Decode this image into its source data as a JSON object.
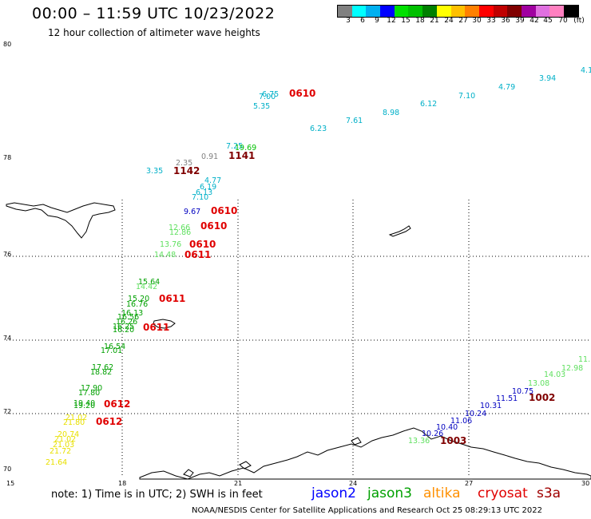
{
  "header": {
    "title": "00:00 – 11:59 UTC 10/23/2022",
    "subtitle": "12 hour collection of altimeter wave heights"
  },
  "colorbar": {
    "colors": [
      "#808080",
      "#00ffff",
      "#00b0f0",
      "#0000ff",
      "#00e000",
      "#00c000",
      "#008000",
      "#ffff00",
      "#ffc000",
      "#ff8000",
      "#ff0000",
      "#c00000",
      "#800000",
      "#a000a0",
      "#e070e0",
      "#ff80c0",
      "#000000"
    ],
    "labels": [
      "3",
      "6",
      "9",
      "12",
      "15",
      "18",
      "21",
      "24",
      "27",
      "30",
      "33",
      "36",
      "39",
      "42",
      "45",
      "70",
      "(ft)"
    ]
  },
  "axes": {
    "lat_labels": [
      "80",
      "78",
      "76",
      "74",
      "72",
      "70"
    ],
    "lon_labels": [
      "15",
      "18",
      "21",
      "24",
      "27",
      "30"
    ]
  },
  "observations": [
    {
      "text": "4.1",
      "color": "#00b0c8"
    },
    {
      "text": "3.94",
      "color": "#00b0c8"
    },
    {
      "text": "4.79",
      "color": "#00b0c8"
    },
    {
      "text": "7.10",
      "color": "#00b0c8"
    },
    {
      "text": "6.12",
      "color": "#00b0c8"
    },
    {
      "text": "8.98",
      "color": "#00b0c8"
    },
    {
      "text": "7.61",
      "color": "#00b0c8"
    },
    {
      "text": "6.23",
      "color": "#00b0c8"
    },
    {
      "text": "6.75",
      "color": "#00b0c8"
    },
    {
      "text": "7.00",
      "color": "#00b0c8"
    },
    {
      "text": "5.35",
      "color": "#00b0c8"
    },
    {
      "text": "0610",
      "color": "#e00000"
    },
    {
      "text": "7.25",
      "color": "#00b0c8"
    },
    {
      "text": "19.69",
      "color": "#00c000"
    },
    {
      "text": "0.91",
      "color": "#808080"
    },
    {
      "text": "1141",
      "color": "#800000"
    },
    {
      "text": "2.35",
      "color": "#808080"
    },
    {
      "text": "3.35",
      "color": "#00b0c8"
    },
    {
      "text": "1142",
      "color": "#800000"
    },
    {
      "text": "4.77",
      "color": "#00b0c8"
    },
    {
      "text": "6.19",
      "color": "#00b0c8"
    },
    {
      "text": "6.13",
      "color": "#00b0c8"
    },
    {
      "text": "7.10",
      "color": "#00b0c8"
    },
    {
      "text": "9.67",
      "color": "#0000c0"
    },
    {
      "text": "0610",
      "color": "#e00000"
    },
    {
      "text": "12.66",
      "color": "#60e060"
    },
    {
      "text": "12.86",
      "color": "#60e060"
    },
    {
      "text": "0610",
      "color": "#e00000"
    },
    {
      "text": "13.76",
      "color": "#60e060"
    },
    {
      "text": "0610",
      "color": "#e00000"
    },
    {
      "text": "14.48",
      "color": "#60e060"
    },
    {
      "text": "0611",
      "color": "#e00000"
    },
    {
      "text": "15.64",
      "color": "#00a000"
    },
    {
      "text": "14.42",
      "color": "#60e060"
    },
    {
      "text": "15.20",
      "color": "#00a000"
    },
    {
      "text": "16.76",
      "color": "#00a000"
    },
    {
      "text": "0611",
      "color": "#e00000"
    },
    {
      "text": "16.13",
      "color": "#00a000"
    },
    {
      "text": "16.56",
      "color": "#00a000"
    },
    {
      "text": "16.26",
      "color": "#00a000"
    },
    {
      "text": "16.25",
      "color": "#00a000"
    },
    {
      "text": "16.20",
      "color": "#00a000"
    },
    {
      "text": "0611",
      "color": "#e00000"
    },
    {
      "text": "16.54",
      "color": "#00a000"
    },
    {
      "text": "17.01",
      "color": "#00a000"
    },
    {
      "text": "17.62",
      "color": "#00a000"
    },
    {
      "text": "18.82",
      "color": "#00a000"
    },
    {
      "text": "17.90",
      "color": "#00a000"
    },
    {
      "text": "17.80",
      "color": "#00a000"
    },
    {
      "text": "19.40",
      "color": "#00a000"
    },
    {
      "text": "19.20",
      "color": "#00a000"
    },
    {
      "text": "0612",
      "color": "#e00000"
    },
    {
      "text": "21.02",
      "color": "#e8e000"
    },
    {
      "text": "21.80",
      "color": "#e8e000"
    },
    {
      "text": "0612",
      "color": "#e00000"
    },
    {
      "text": "20.74",
      "color": "#e8e000"
    },
    {
      "text": "21.02",
      "color": "#e8e000"
    },
    {
      "text": "21.03",
      "color": "#e8e000"
    },
    {
      "text": "21.72",
      "color": "#e8e000"
    },
    {
      "text": "21.64",
      "color": "#e8e000"
    },
    {
      "text": "11.",
      "color": "#60e060"
    },
    {
      "text": "12.98",
      "color": "#60e060"
    },
    {
      "text": "14.03",
      "color": "#60e060"
    },
    {
      "text": "13.08",
      "color": "#60e060"
    },
    {
      "text": "10.75",
      "color": "#0000c0"
    },
    {
      "text": "1002",
      "color": "#800000"
    },
    {
      "text": "11.51",
      "color": "#0000c0"
    },
    {
      "text": "10.31",
      "color": "#0000c0"
    },
    {
      "text": "10.24",
      "color": "#0000c0"
    },
    {
      "text": "11.06",
      "color": "#0000c0"
    },
    {
      "text": "10.40",
      "color": "#0000c0"
    },
    {
      "text": "10.26",
      "color": "#0000c0"
    },
    {
      "text": "1003",
      "color": "#800000"
    },
    {
      "text": "13.36",
      "color": "#60e060"
    }
  ],
  "note": "note:  1) Time is in UTC;  2) SWH is in feet",
  "legend": [
    {
      "label": "jason2",
      "color": "#0000ff"
    },
    {
      "label": "jason3",
      "color": "#00a000"
    },
    {
      "label": "altika",
      "color": "#ff9000"
    },
    {
      "label": "cryosat",
      "color": "#e00000"
    },
    {
      "label": "s3a",
      "color": "#a00000"
    }
  ],
  "footer": "NOAA/NESDIS Center for Satellite Applications and Research     Oct 25 08:29:13 UTC 2022"
}
